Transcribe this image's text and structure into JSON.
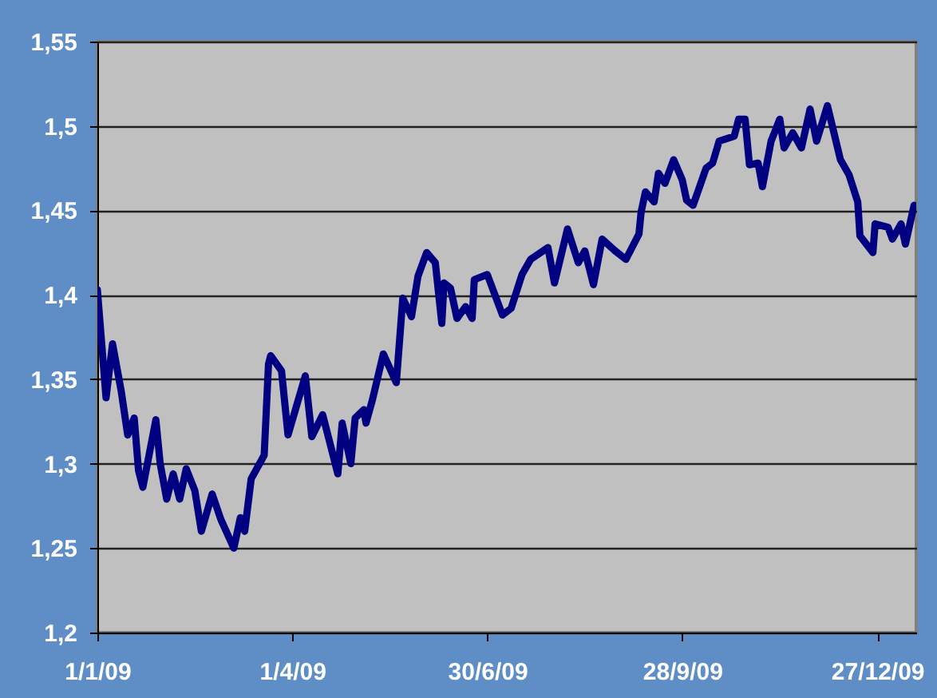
{
  "chart_data": {
    "type": "line",
    "x": [
      "2009-01-01",
      "2009-01-05",
      "2009-01-08",
      "2009-01-12",
      "2009-01-15",
      "2009-01-18",
      "2009-01-20",
      "2009-01-22",
      "2009-01-28",
      "2009-01-30",
      "2009-02-02",
      "2009-02-05",
      "2009-02-08",
      "2009-02-11",
      "2009-02-15",
      "2009-02-18",
      "2009-02-23",
      "2009-02-27",
      "2009-03-05",
      "2009-03-08",
      "2009-03-10",
      "2009-03-13",
      "2009-03-19",
      "2009-03-21",
      "2009-03-22",
      "2009-03-27",
      "2009-03-30",
      "2009-04-07",
      "2009-04-10",
      "2009-04-15",
      "2009-04-22",
      "2009-04-24",
      "2009-04-28",
      "2009-04-30",
      "2009-05-04",
      "2009-05-05",
      "2009-05-08",
      "2009-05-13",
      "2009-05-19",
      "2009-05-22",
      "2009-05-26",
      "2009-05-29",
      "2009-06-02",
      "2009-06-06",
      "2009-06-09",
      "2009-06-10",
      "2009-06-13",
      "2009-06-16",
      "2009-06-20",
      "2009-06-23",
      "2009-06-24",
      "2009-06-30",
      "2009-07-07",
      "2009-07-11",
      "2009-07-16",
      "2009-07-20",
      "2009-07-28",
      "2009-07-31",
      "2009-08-06",
      "2009-08-11",
      "2009-08-14",
      "2009-08-18",
      "2009-08-22",
      "2009-08-28",
      "2009-09-02",
      "2009-09-08",
      "2009-09-09",
      "2009-09-11",
      "2009-09-15",
      "2009-09-17",
      "2009-09-20",
      "2009-09-24",
      "2009-09-28",
      "2009-09-30",
      "2009-10-03",
      "2009-10-09",
      "2009-10-12",
      "2009-10-15",
      "2009-10-22",
      "2009-10-24",
      "2009-10-27",
      "2009-10-29",
      "2009-11-02",
      "2009-11-04",
      "2009-11-08",
      "2009-11-12",
      "2009-11-14",
      "2009-11-18",
      "2009-11-22",
      "2009-11-26",
      "2009-11-29",
      "2009-12-04",
      "2009-12-07",
      "2009-12-10",
      "2009-12-14",
      "2009-12-18",
      "2009-12-19",
      "2009-12-25",
      "2009-12-26",
      "2010-01-01",
      "2010-01-03",
      "2010-01-07",
      "2010-01-09",
      "2010-01-13"
    ],
    "series": [
      {
        "color": "#000080",
        "values": [
          1.403,
          1.339,
          1.371,
          1.343,
          1.317,
          1.327,
          1.296,
          1.286,
          1.326,
          1.3,
          1.279,
          1.294,
          1.279,
          1.297,
          1.284,
          1.26,
          1.282,
          1.267,
          1.25,
          1.268,
          1.26,
          1.291,
          1.305,
          1.359,
          1.364,
          1.355,
          1.317,
          1.352,
          1.316,
          1.329,
          1.294,
          1.324,
          1.3,
          1.327,
          1.332,
          1.324,
          1.338,
          1.365,
          1.348,
          1.398,
          1.387,
          1.411,
          1.425,
          1.419,
          1.383,
          1.407,
          1.404,
          1.386,
          1.393,
          1.386,
          1.409,
          1.412,
          1.388,
          1.392,
          1.412,
          1.421,
          1.428,
          1.407,
          1.439,
          1.419,
          1.426,
          1.406,
          1.433,
          1.426,
          1.421,
          1.436,
          1.449,
          1.461,
          1.455,
          1.472,
          1.466,
          1.48,
          1.468,
          1.456,
          1.453,
          1.475,
          1.478,
          1.491,
          1.494,
          1.504,
          1.504,
          1.477,
          1.478,
          1.464,
          1.491,
          1.504,
          1.487,
          1.496,
          1.487,
          1.51,
          1.491,
          1.512,
          1.496,
          1.48,
          1.471,
          1.455,
          1.435,
          1.425,
          1.442,
          1.44,
          1.433,
          1.442,
          1.43,
          1.453
        ]
      }
    ],
    "xlim": [
      "2009-01-01",
      "2010-01-14"
    ],
    "xticks": [
      {
        "value": "2009-01-01",
        "label": "1/1/09"
      },
      {
        "value": "2009-04-01",
        "label": "1/4/09"
      },
      {
        "value": "2009-06-30",
        "label": "30/6/09"
      },
      {
        "value": "2009-09-28",
        "label": "28/9/09"
      },
      {
        "value": "2009-12-27",
        "label": "27/12/09"
      }
    ],
    "ylim": [
      1.2,
      1.55
    ],
    "yticks": [
      {
        "value": 1.2,
        "label": "1,2"
      },
      {
        "value": 1.25,
        "label": "1,25"
      },
      {
        "value": 1.3,
        "label": "1,3"
      },
      {
        "value": 1.35,
        "label": "1,35"
      },
      {
        "value": 1.4,
        "label": "1,4"
      },
      {
        "value": 1.45,
        "label": "1,45"
      },
      {
        "value": 1.5,
        "label": "1,5"
      },
      {
        "value": 1.55,
        "label": "1,55"
      }
    ],
    "grid": "y",
    "marker": "none",
    "line_style": "solid"
  }
}
